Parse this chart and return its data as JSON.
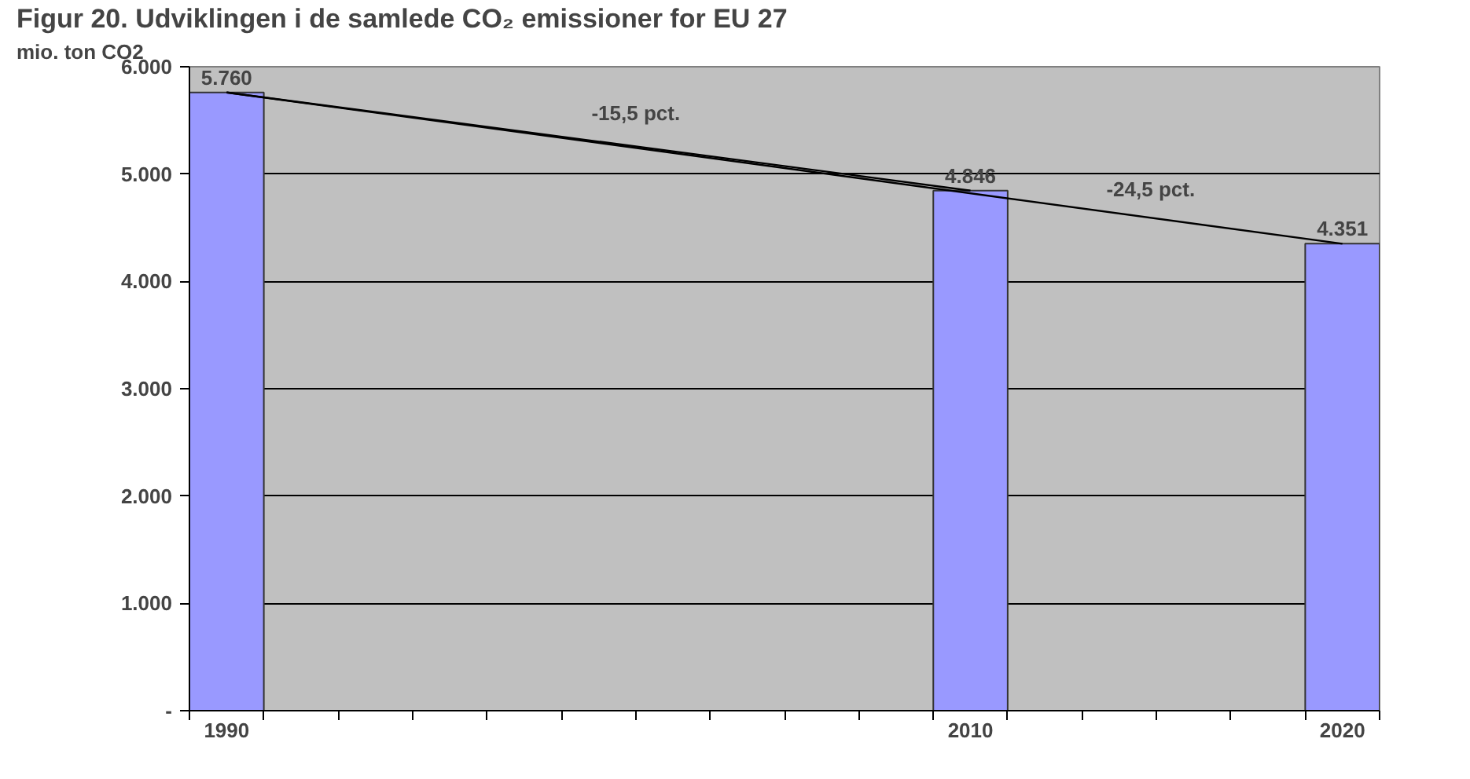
{
  "chart_data": {
    "type": "bar",
    "title": "Figur 20. Udviklingen i de samlede CO₂ emissioner for EU 27",
    "ylabel": "mio. ton CO2",
    "categories": [
      "1990",
      null,
      null,
      null,
      null,
      null,
      null,
      null,
      null,
      null,
      "2010",
      null,
      null,
      null,
      null,
      "2020"
    ],
    "series": [
      {
        "color": "#9999ff",
        "values": [
          5760,
          null,
          null,
          null,
          null,
          null,
          null,
          null,
          null,
          null,
          4846,
          null,
          null,
          null,
          null,
          4351
        ],
        "value_labels": [
          "5.760",
          null,
          null,
          null,
          null,
          null,
          null,
          null,
          null,
          null,
          "4.846",
          null,
          null,
          null,
          null,
          "4.351"
        ]
      },
      {
        "type": "line",
        "color": "#000000",
        "values": [
          5760,
          null,
          null,
          null,
          null,
          null,
          null,
          null,
          null,
          null,
          4846,
          null,
          null,
          null,
          null,
          null
        ]
      },
      {
        "type": "line",
        "color": "#000000",
        "values": [
          5760,
          null,
          null,
          null,
          null,
          null,
          null,
          null,
          null,
          null,
          null,
          null,
          null,
          null,
          null,
          4351
        ]
      }
    ],
    "annotations": [
      "-15,5 pct.",
      "-24,5 pct."
    ],
    "ylim": [
      0,
      6000
    ],
    "yticks": [
      {
        "value": 0,
        "label": "-"
      },
      {
        "value": 1000,
        "label": "1.000"
      },
      {
        "value": 2000,
        "label": "2.000"
      },
      {
        "value": 3000,
        "label": "3.000"
      },
      {
        "value": 4000,
        "label": "4.000"
      },
      {
        "value": 5000,
        "label": "5.000"
      },
      {
        "value": 6000,
        "label": "6.000"
      }
    ],
    "grid": "y",
    "marker": "none",
    "line_style": "solid"
  }
}
